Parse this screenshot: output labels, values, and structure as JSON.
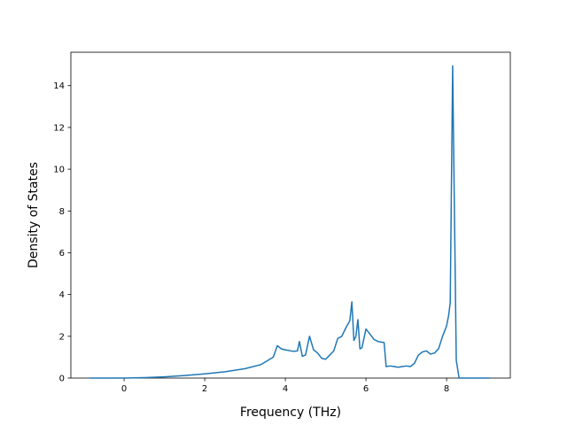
{
  "chart_data": {
    "type": "line",
    "x_label": "Frequency (THz)",
    "y_label": "Density of States",
    "xlim": [
      -1.32,
      9.58
    ],
    "ylim": [
      0,
      15.6
    ],
    "xticks": [
      0,
      2,
      4,
      6,
      8
    ],
    "yticks": [
      0,
      2,
      4,
      6,
      8,
      10,
      12,
      14
    ],
    "series": [
      {
        "color": "#1f77b4",
        "x": [
          -0.84,
          -0.5,
          0,
          0.5,
          1,
          1.5,
          2,
          2.5,
          3,
          3.4,
          3.7,
          3.8,
          3.9,
          4.0,
          4.2,
          4.3,
          4.35,
          4.42,
          4.5,
          4.6,
          4.7,
          4.8,
          4.9,
          5.0,
          5.1,
          5.2,
          5.3,
          5.4,
          5.5,
          5.6,
          5.65,
          5.7,
          5.75,
          5.8,
          5.85,
          5.9,
          6.0,
          6.1,
          6.2,
          6.3,
          6.45,
          6.5,
          6.6,
          6.7,
          6.8,
          6.9,
          7.0,
          7.1,
          7.2,
          7.3,
          7.4,
          7.5,
          7.6,
          7.7,
          7.8,
          7.9,
          8.0,
          8.05,
          8.09,
          8.15,
          8.24,
          8.31,
          8.5,
          9.08
        ],
        "values": [
          0,
          0,
          0,
          0.02,
          0.06,
          0.12,
          0.2,
          0.3,
          0.45,
          0.65,
          1.0,
          1.55,
          1.4,
          1.35,
          1.28,
          1.3,
          1.75,
          1.05,
          1.1,
          2.0,
          1.35,
          1.2,
          0.95,
          0.9,
          1.1,
          1.3,
          1.9,
          2.0,
          2.4,
          2.75,
          3.65,
          1.8,
          2.0,
          2.8,
          1.4,
          1.45,
          2.35,
          2.1,
          1.85,
          1.75,
          1.7,
          0.55,
          0.58,
          0.55,
          0.52,
          0.55,
          0.58,
          0.55,
          0.7,
          1.1,
          1.25,
          1.3,
          1.15,
          1.2,
          1.4,
          2.0,
          2.5,
          3.0,
          3.6,
          14.95,
          0.85,
          0,
          0,
          0
        ]
      }
    ]
  }
}
